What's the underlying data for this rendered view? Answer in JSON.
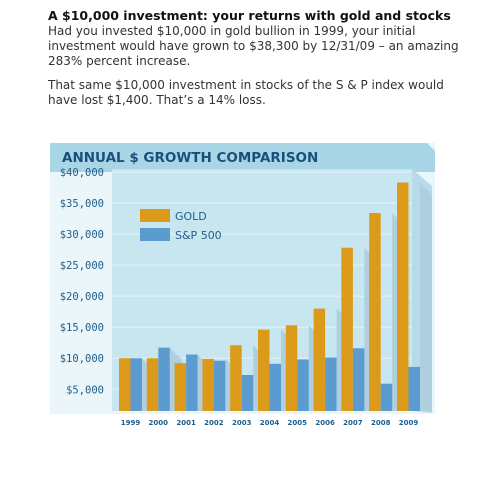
{
  "intro": {
    "headline": "A $10,000 investment: your returns with gold and stocks",
    "paragraph1": "Had you invested $10,000 in gold bullion in 1999, your initial investment would have grown to $38,300 by 12/31/09 – an amazing 283% percent increase.",
    "paragraph2": "That same $10,000 investment in stocks of the S & P index would have lost $1,400. That’s a 14% loss."
  },
  "colors": {
    "gold": "#DB9A1A",
    "sp500": "#5B9BD0",
    "banner": "#A8D6E6",
    "plot_bg": "#C8E6F0",
    "shadow": "#AFCFDF",
    "title_text": "#1B4F7A",
    "axis_text": "#1F5E8C"
  },
  "chart_data": {
    "type": "bar",
    "title": "ANNUAL $ GROWTH COMPARISON",
    "xlabel": "",
    "ylabel": "",
    "categories": [
      "1999",
      "2000",
      "2001",
      "2002",
      "2003",
      "2004",
      "2005",
      "2006",
      "2007",
      "2008",
      "2009"
    ],
    "series": [
      {
        "name": "GOLD",
        "values": [
          10000,
          10000,
          9200,
          9900,
          12100,
          14600,
          15300,
          18000,
          27800,
          33400,
          38300
        ]
      },
      {
        "name": "S&P 500",
        "values": [
          10000,
          11700,
          10600,
          9600,
          7300,
          9100,
          9800,
          10100,
          11600,
          5900,
          8600
        ]
      }
    ],
    "yticks": [
      "$5,000",
      "$10,000",
      "$15,000",
      "$20,000",
      "$25,000",
      "$30,000",
      "$35,000",
      "$40,000"
    ],
    "ytick_values": [
      5000,
      10000,
      15000,
      20000,
      25000,
      30000,
      35000,
      40000
    ],
    "ylim": [
      1500,
      40000
    ],
    "legend_position": "top-left",
    "grid": true
  }
}
